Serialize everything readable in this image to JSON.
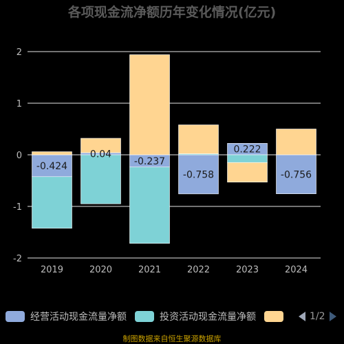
{
  "chart_data": {
    "type": "bar",
    "title": "各项现金流净额历年变化情况(亿元)",
    "unit": "亿元",
    "categories": [
      "2019",
      "2020",
      "2021",
      "2022",
      "2023",
      "2024"
    ],
    "ylim": [
      -2,
      2
    ],
    "yticks": [
      "-2",
      "-1",
      "0",
      "1",
      "2"
    ],
    "grid": true,
    "stacked": true,
    "series": [
      {
        "name": "经营活动现金流量净额",
        "color": "#8faadc",
        "values": [
          -0.424,
          0.04,
          -0.237,
          -0.758,
          0.222,
          -0.756
        ],
        "labels": [
          "-0.424",
          "0.04",
          "-0.237",
          "-0.758",
          "0.222",
          "-0.756"
        ]
      },
      {
        "name": "投资活动现金流量净额",
        "color": "#7ed2d6",
        "values": [
          -1.0,
          -0.95,
          -1.48,
          0.02,
          -0.15,
          0.0
        ]
      },
      {
        "name": "",
        "color": "#ffd591",
        "values": [
          0.06,
          0.28,
          1.94,
          0.56,
          -0.38,
          0.5
        ]
      }
    ]
  },
  "legend": {
    "pager": "1/2",
    "prev_icon": "triangle-left-icon",
    "next_icon": "triangle-right-icon"
  },
  "footer": "制图数据来自恒生聚源数据库"
}
